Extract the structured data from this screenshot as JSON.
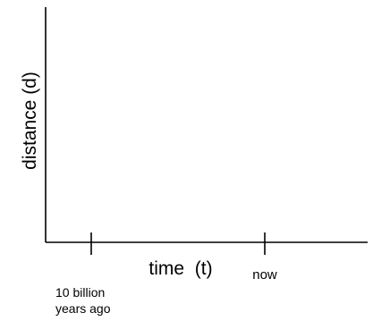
{
  "chart_data": {
    "type": "line",
    "title": "",
    "xlabel": "time  (t)",
    "ylabel": "distance (d)",
    "x_ticks": [
      {
        "label_lines": [
          "10 billion",
          "years ago"
        ]
      },
      {
        "label_lines": [
          "now"
        ]
      }
    ],
    "series": [],
    "grid": false,
    "legend": "none",
    "colors": {
      "axis": "#000000",
      "text": "#000000",
      "background": "#ffffff"
    }
  }
}
